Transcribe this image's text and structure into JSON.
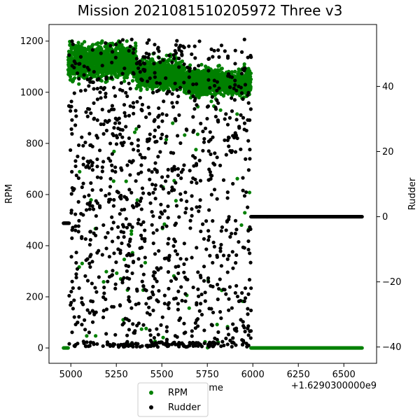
{
  "chart_data": {
    "type": "scatter",
    "title": "Mission 2021081510205972 Three v3",
    "xlabel": "Time",
    "x_offset_label": "+1.6290300000e9",
    "ylabel_left": "RPM",
    "ylabel_right": "Rudder",
    "xlim": [
      4880,
      6680
    ],
    "ylim_left": [
      -60,
      1265
    ],
    "ylim_right": [
      -45,
      59
    ],
    "xticks": [
      5000,
      5250,
      5500,
      5750,
      6000,
      6250,
      6500
    ],
    "yticks_left": [
      0,
      200,
      400,
      600,
      800,
      1000,
      1200
    ],
    "yticks_right": [
      -40,
      -20,
      0,
      20,
      40
    ],
    "grid": false,
    "legend_position": "bottom-center",
    "series": [
      {
        "name": "RPM",
        "axis": "left",
        "color": "#008000",
        "description_segments": [
          {
            "x_range": [
              4960,
              4985
            ],
            "values": [
              0
            ]
          },
          {
            "x_range": [
              4985,
              5360
            ],
            "range": [
              1000,
              1200
            ],
            "center": 1120
          },
          {
            "x_range": [
              5360,
              5620
            ],
            "range": [
              990,
              1160
            ],
            "center": 1070
          },
          {
            "x_range": [
              5620,
              5990
            ],
            "range": [
              960,
              1110
            ],
            "center": 1040
          },
          {
            "x_range": [
              5990,
              6600
            ],
            "values": [
              0
            ]
          }
        ]
      },
      {
        "name": "Rudder",
        "axis": "right",
        "color": "#000000",
        "description_segments": [
          {
            "x_range": [
              4960,
              4990
            ],
            "values": [
              -2
            ]
          },
          {
            "x_range": [
              4990,
              5990
            ],
            "range": [
              -40,
              55
            ]
          },
          {
            "x_range": [
              5990,
              6600
            ],
            "values": [
              0
            ]
          }
        ]
      }
    ]
  }
}
